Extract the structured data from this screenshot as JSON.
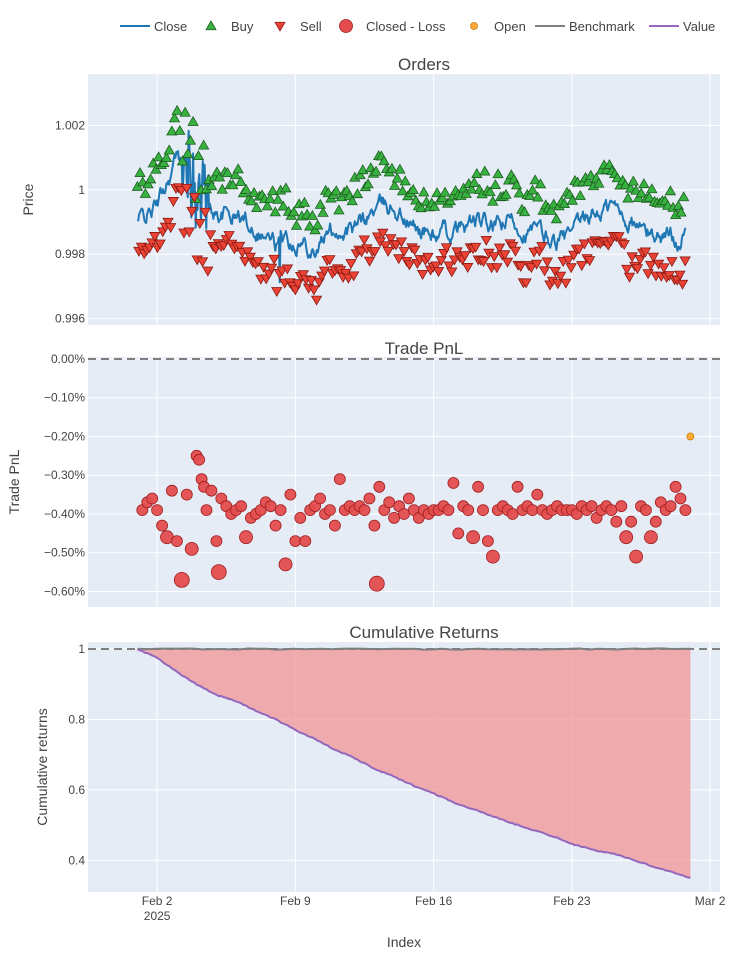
{
  "legend": {
    "items": [
      {
        "key": "close",
        "label": "Close",
        "color": "#1f77b4",
        "symbol": "line"
      },
      {
        "key": "buy",
        "label": "Buy",
        "color": "#37b13f",
        "symbol": "triangle-up"
      },
      {
        "key": "sell",
        "label": "Sell",
        "color": "#ea4335",
        "symbol": "triangle-down"
      },
      {
        "key": "closed_loss",
        "label": "Closed - Loss",
        "color": "#e34d4d",
        "symbol": "circle"
      },
      {
        "key": "open",
        "label": "Open",
        "color": "#ffaa33",
        "symbol": "circle-small"
      },
      {
        "key": "benchmark",
        "label": "Benchmark",
        "color": "#7f7f7f",
        "symbol": "line"
      },
      {
        "key": "value",
        "label": "Value",
        "color": "#9467bd",
        "symbol": "line"
      }
    ]
  },
  "xaxis": {
    "title": "Index",
    "range": [
      "2025-01-29T12:00",
      "2025-03-02T12:00"
    ],
    "ticks": [
      {
        "date": "2025-02-02",
        "label": "Feb 2",
        "sublabel": "2025"
      },
      {
        "date": "2025-02-09",
        "label": "Feb 9",
        "sublabel": ""
      },
      {
        "date": "2025-02-16",
        "label": "Feb 16",
        "sublabel": ""
      },
      {
        "date": "2025-02-23",
        "label": "Feb 23",
        "sublabel": ""
      },
      {
        "date": "2025-03-02",
        "label": "Mar 2",
        "sublabel": ""
      }
    ]
  },
  "colors": {
    "plot_bg": "#e5ecf6",
    "grid": "#ffffff",
    "close": "#1f77b4",
    "buy_fill": "#37b13f",
    "buy_edge": "#1f5f22",
    "sell_fill": "#ea4335",
    "sell_edge": "#8b1a12",
    "loss_fill": "#e34d4d",
    "loss_edge": "#a11f1f",
    "open_fill": "#ffaa33",
    "open_edge": "#c47a00",
    "benchmark": "#7f7f7f",
    "value": "#9467bd",
    "drawdown_fill": "#f09494",
    "reference": "#7f7f7f"
  },
  "chart_data": [
    {
      "id": "orders",
      "type": "line",
      "title": "Orders",
      "xlabel": "",
      "ylabel": "Price",
      "ylim": [
        0.9958,
        1.0036
      ],
      "yticks": [
        {
          "value": 0.996,
          "label": "0.996"
        },
        {
          "value": 0.998,
          "label": "0.998"
        },
        {
          "value": 1.0,
          "label": "1"
        },
        {
          "value": 1.002,
          "label": "1.002"
        }
      ],
      "close_anchors": [
        [
          "2025-02-01",
          0.999
        ],
        [
          "2025-02-02",
          0.9995
        ],
        [
          "2025-02-03",
          1.001
        ],
        [
          "2025-02-04",
          0.9996
        ],
        [
          "2025-02-05",
          0.9993
        ],
        [
          "2025-02-06",
          0.9992
        ],
        [
          "2025-02-07",
          0.9989
        ],
        [
          "2025-02-08",
          0.9983
        ],
        [
          "2025-02-09",
          0.9985
        ],
        [
          "2025-02-10",
          0.9982
        ],
        [
          "2025-02-11",
          0.9988
        ],
        [
          "2025-02-12",
          0.9987
        ],
        [
          "2025-02-13",
          0.9994
        ],
        [
          "2025-02-14",
          0.9995
        ],
        [
          "2025-02-15",
          0.9988
        ],
        [
          "2025-02-16",
          0.9986
        ],
        [
          "2025-02-17",
          0.9986
        ],
        [
          "2025-02-18",
          0.999
        ],
        [
          "2025-02-19",
          0.9988
        ],
        [
          "2025-02-20",
          0.999
        ],
        [
          "2025-02-21",
          0.9987
        ],
        [
          "2025-02-22",
          0.9984
        ],
        [
          "2025-02-23",
          0.9985
        ],
        [
          "2025-02-24",
          0.9992
        ],
        [
          "2025-02-25",
          0.9995
        ],
        [
          "2025-02-26",
          0.999
        ],
        [
          "2025-02-27",
          0.9986
        ],
        [
          "2025-02-28",
          0.9986
        ]
      ],
      "close_dates_range": [
        "2025-02-01",
        "2025-02-28"
      ],
      "series": [
        {
          "name": "Close",
          "style": "line"
        },
        {
          "name": "Buy",
          "style": "triangle-up",
          "offset_above_close": 0.0009
        },
        {
          "name": "Sell",
          "style": "triangle-down",
          "offset_below_close": 0.0009
        }
      ]
    },
    {
      "id": "trade_pnl",
      "type": "scatter",
      "title": "Trade PnL",
      "xlabel": "",
      "ylabel": "Trade PnL",
      "ylim": [
        -0.64,
        0.005
      ],
      "yticks": [
        {
          "value": 0.0,
          "label": "0.00%"
        },
        {
          "value": -0.1,
          "label": "−0.10%"
        },
        {
          "value": -0.2,
          "label": "−0.20%"
        },
        {
          "value": -0.3,
          "label": "−0.30%"
        },
        {
          "value": -0.4,
          "label": "−0.40%"
        },
        {
          "value": -0.5,
          "label": "−0.50%"
        },
        {
          "value": -0.6,
          "label": "−0.60%"
        }
      ],
      "reference_line": 0.0,
      "series": [
        {
          "name": "Closed - Loss",
          "points": [
            [
              "2025-02-01T06:00",
              -0.39
            ],
            [
              "2025-02-01T12:00",
              -0.37
            ],
            [
              "2025-02-01T18:00",
              -0.36
            ],
            [
              "2025-02-02T00:00",
              -0.39
            ],
            [
              "2025-02-02T06:00",
              -0.43
            ],
            [
              "2025-02-02T12:00",
              -0.46
            ],
            [
              "2025-02-02T18:00",
              -0.34
            ],
            [
              "2025-02-03T00:00",
              -0.47
            ],
            [
              "2025-02-03T06:00",
              -0.57
            ],
            [
              "2025-02-03T12:00",
              -0.35
            ],
            [
              "2025-02-03T18:00",
              -0.49
            ],
            [
              "2025-02-04T00:00",
              -0.25
            ],
            [
              "2025-02-04T03:00",
              -0.26
            ],
            [
              "2025-02-04T06:00",
              -0.31
            ],
            [
              "2025-02-04T09:00",
              -0.33
            ],
            [
              "2025-02-04T12:00",
              -0.39
            ],
            [
              "2025-02-04T18:00",
              -0.34
            ],
            [
              "2025-02-05T00:00",
              -0.47
            ],
            [
              "2025-02-05T03:00",
              -0.55
            ],
            [
              "2025-02-05T06:00",
              -0.36
            ],
            [
              "2025-02-05T12:00",
              -0.38
            ],
            [
              "2025-02-05T18:00",
              -0.4
            ],
            [
              "2025-02-06T00:00",
              -0.39
            ],
            [
              "2025-02-06T06:00",
              -0.38
            ],
            [
              "2025-02-06T12:00",
              -0.46
            ],
            [
              "2025-02-06T18:00",
              -0.41
            ],
            [
              "2025-02-07T00:00",
              -0.4
            ],
            [
              "2025-02-07T06:00",
              -0.39
            ],
            [
              "2025-02-07T12:00",
              -0.37
            ],
            [
              "2025-02-07T18:00",
              -0.38
            ],
            [
              "2025-02-08T00:00",
              -0.43
            ],
            [
              "2025-02-08T06:00",
              -0.39
            ],
            [
              "2025-02-08T12:00",
              -0.53
            ],
            [
              "2025-02-08T18:00",
              -0.35
            ],
            [
              "2025-02-09T00:00",
              -0.47
            ],
            [
              "2025-02-09T06:00",
              -0.41
            ],
            [
              "2025-02-09T12:00",
              -0.47
            ],
            [
              "2025-02-09T18:00",
              -0.39
            ],
            [
              "2025-02-10T00:00",
              -0.38
            ],
            [
              "2025-02-10T06:00",
              -0.36
            ],
            [
              "2025-02-10T12:00",
              -0.4
            ],
            [
              "2025-02-10T18:00",
              -0.39
            ],
            [
              "2025-02-11T00:00",
              -0.43
            ],
            [
              "2025-02-11T06:00",
              -0.31
            ],
            [
              "2025-02-11T12:00",
              -0.39
            ],
            [
              "2025-02-11T18:00",
              -0.38
            ],
            [
              "2025-02-12T00:00",
              -0.39
            ],
            [
              "2025-02-12T06:00",
              -0.38
            ],
            [
              "2025-02-12T12:00",
              -0.39
            ],
            [
              "2025-02-12T18:00",
              -0.36
            ],
            [
              "2025-02-13T00:00",
              -0.43
            ],
            [
              "2025-02-13T03:00",
              -0.58
            ],
            [
              "2025-02-13T06:00",
              -0.33
            ],
            [
              "2025-02-13T12:00",
              -0.39
            ],
            [
              "2025-02-13T18:00",
              -0.37
            ],
            [
              "2025-02-14T00:00",
              -0.41
            ],
            [
              "2025-02-14T06:00",
              -0.38
            ],
            [
              "2025-02-14T12:00",
              -0.4
            ],
            [
              "2025-02-14T18:00",
              -0.36
            ],
            [
              "2025-02-15T00:00",
              -0.39
            ],
            [
              "2025-02-15T06:00",
              -0.41
            ],
            [
              "2025-02-15T12:00",
              -0.39
            ],
            [
              "2025-02-15T18:00",
              -0.4
            ],
            [
              "2025-02-16T00:00",
              -0.39
            ],
            [
              "2025-02-16T06:00",
              -0.39
            ],
            [
              "2025-02-16T12:00",
              -0.38
            ],
            [
              "2025-02-16T18:00",
              -0.39
            ],
            [
              "2025-02-17T00:00",
              -0.32
            ],
            [
              "2025-02-17T06:00",
              -0.45
            ],
            [
              "2025-02-17T12:00",
              -0.38
            ],
            [
              "2025-02-17T18:00",
              -0.39
            ],
            [
              "2025-02-18T00:00",
              -0.46
            ],
            [
              "2025-02-18T06:00",
              -0.33
            ],
            [
              "2025-02-18T12:00",
              -0.39
            ],
            [
              "2025-02-18T18:00",
              -0.47
            ],
            [
              "2025-02-19T00:00",
              -0.51
            ],
            [
              "2025-02-19T06:00",
              -0.39
            ],
            [
              "2025-02-19T12:00",
              -0.38
            ],
            [
              "2025-02-19T18:00",
              -0.39
            ],
            [
              "2025-02-20T00:00",
              -0.4
            ],
            [
              "2025-02-20T06:00",
              -0.33
            ],
            [
              "2025-02-20T12:00",
              -0.39
            ],
            [
              "2025-02-20T18:00",
              -0.38
            ],
            [
              "2025-02-21T00:00",
              -0.39
            ],
            [
              "2025-02-21T06:00",
              -0.35
            ],
            [
              "2025-02-21T12:00",
              -0.39
            ],
            [
              "2025-02-21T18:00",
              -0.4
            ],
            [
              "2025-02-22T00:00",
              -0.39
            ],
            [
              "2025-02-22T06:00",
              -0.38
            ],
            [
              "2025-02-22T12:00",
              -0.39
            ],
            [
              "2025-02-22T18:00",
              -0.39
            ],
            [
              "2025-02-23T00:00",
              -0.39
            ],
            [
              "2025-02-23T06:00",
              -0.4
            ],
            [
              "2025-02-23T12:00",
              -0.38
            ],
            [
              "2025-02-23T18:00",
              -0.39
            ],
            [
              "2025-02-24T00:00",
              -0.38
            ],
            [
              "2025-02-24T06:00",
              -0.41
            ],
            [
              "2025-02-24T12:00",
              -0.39
            ],
            [
              "2025-02-24T18:00",
              -0.38
            ],
            [
              "2025-02-25T00:00",
              -0.39
            ],
            [
              "2025-02-25T06:00",
              -0.42
            ],
            [
              "2025-02-25T12:00",
              -0.38
            ],
            [
              "2025-02-25T18:00",
              -0.46
            ],
            [
              "2025-02-26T00:00",
              -0.42
            ],
            [
              "2025-02-26T06:00",
              -0.51
            ],
            [
              "2025-02-26T12:00",
              -0.38
            ],
            [
              "2025-02-26T18:00",
              -0.39
            ],
            [
              "2025-02-27T00:00",
              -0.46
            ],
            [
              "2025-02-27T06:00",
              -0.42
            ],
            [
              "2025-02-27T12:00",
              -0.37
            ],
            [
              "2025-02-27T18:00",
              -0.39
            ],
            [
              "2025-02-28T00:00",
              -0.38
            ],
            [
              "2025-02-28T06:00",
              -0.33
            ],
            [
              "2025-02-28T12:00",
              -0.36
            ],
            [
              "2025-02-28T18:00",
              -0.39
            ]
          ],
          "large_points": [
            -0.57,
            -0.55,
            -0.58,
            -0.53,
            -0.51,
            -0.49,
            -0.46
          ]
        },
        {
          "name": "Open",
          "points": [
            [
              "2025-03-01T00:00",
              -0.2
            ]
          ]
        }
      ]
    },
    {
      "id": "cumulative_returns",
      "type": "area",
      "title": "Cumulative Returns",
      "xlabel": "Index",
      "ylabel": "Cumulative returns",
      "ylim": [
        0.31,
        1.02
      ],
      "yticks": [
        {
          "value": 0.4,
          "label": "0.4"
        },
        {
          "value": 0.6,
          "label": "0.6"
        },
        {
          "value": 0.8,
          "label": "0.8"
        },
        {
          "value": 1.0,
          "label": "1"
        }
      ],
      "reference_line": 1.0,
      "series": [
        {
          "name": "Benchmark",
          "x": [
            "2025-02-01",
            "2025-03-01"
          ],
          "values": [
            1.0,
            1.0
          ]
        },
        {
          "name": "Value",
          "x": [
            "2025-02-01",
            "2025-02-02",
            "2025-02-03",
            "2025-02-04",
            "2025-02-05",
            "2025-02-06",
            "2025-02-07",
            "2025-02-08",
            "2025-02-09",
            "2025-02-10",
            "2025-02-11",
            "2025-02-12",
            "2025-02-13",
            "2025-02-14",
            "2025-02-15",
            "2025-02-16",
            "2025-02-17",
            "2025-02-18",
            "2025-02-19",
            "2025-02-20",
            "2025-02-21",
            "2025-02-22",
            "2025-02-23",
            "2025-02-24",
            "2025-02-25",
            "2025-02-26",
            "2025-02-27",
            "2025-02-28",
            "2025-03-01"
          ],
          "values": [
            1.0,
            0.975,
            0.935,
            0.9,
            0.87,
            0.852,
            0.825,
            0.8,
            0.77,
            0.745,
            0.714,
            0.69,
            0.66,
            0.637,
            0.612,
            0.59,
            0.565,
            0.545,
            0.525,
            0.505,
            0.487,
            0.469,
            0.447,
            0.43,
            0.42,
            0.404,
            0.384,
            0.368,
            0.35
          ]
        }
      ]
    }
  ]
}
